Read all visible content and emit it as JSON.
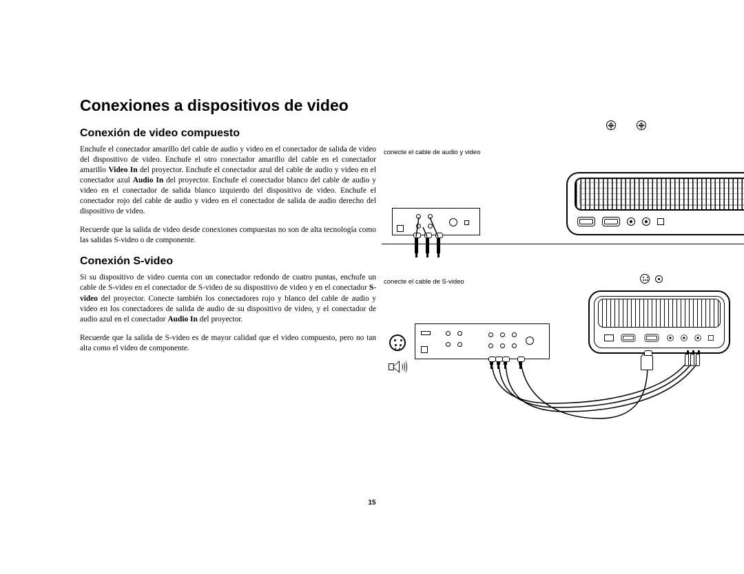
{
  "page_number": "15",
  "main_title": "Conexiones a dispositivos de video",
  "sections": [
    {
      "heading": "Conexión de video compuesto",
      "paragraphs": [
        "Enchufe el conectador amarillo del cable de audio y video en el conectador de salida de video del dispositivo de video. Enchufe el otro conectador amarillo del cable en el conectador amarillo <b>Video In</b> del proyector. Enchufe el conectador azul del cable de audio y video en el conectador azul <b>Audio In</b> del proyector. Enchufe el conectador blanco del cable de audio y video en el conectador de salida blanco izquierdo del dispositivo de video. Enchufe el conectador rojo del cable de audio y video en el conectador de salida de audio derecho del dispositivo de video.",
        "Recuerde que la salida de video desde conexiones compuestas no son de alta tecnología como las salidas S-video o de componente."
      ],
      "caption": "conecte el cable de audio y video"
    },
    {
      "heading": "Conexión S-video",
      "paragraphs": [
        "Si su dispositivo de video cuenta con un conectador redondo de cuatro puntas, enchufe un cable de S-video en el conectador de S-video de su dispositivo de video y en el conectador <b>S-video</b> del proyector. Conecte también los conectadores rojo y blanco del cable de audio y video en los conectadores de salida de audio de su dispositivo de video, y el conectador de audio azul en el conectador <b>Audio In</b> del proyector.",
        "Recuerde que la salida de S-video es de mayor calidad que el video compuesto, pero no tan alta como el video de componente."
      ],
      "caption": "conecte el cable de S-video"
    }
  ],
  "colors": {
    "text": "#000000",
    "background": "#ffffff"
  },
  "typography": {
    "title_pt": 23,
    "h2_pt": 16,
    "body_pt": 11.4
  }
}
